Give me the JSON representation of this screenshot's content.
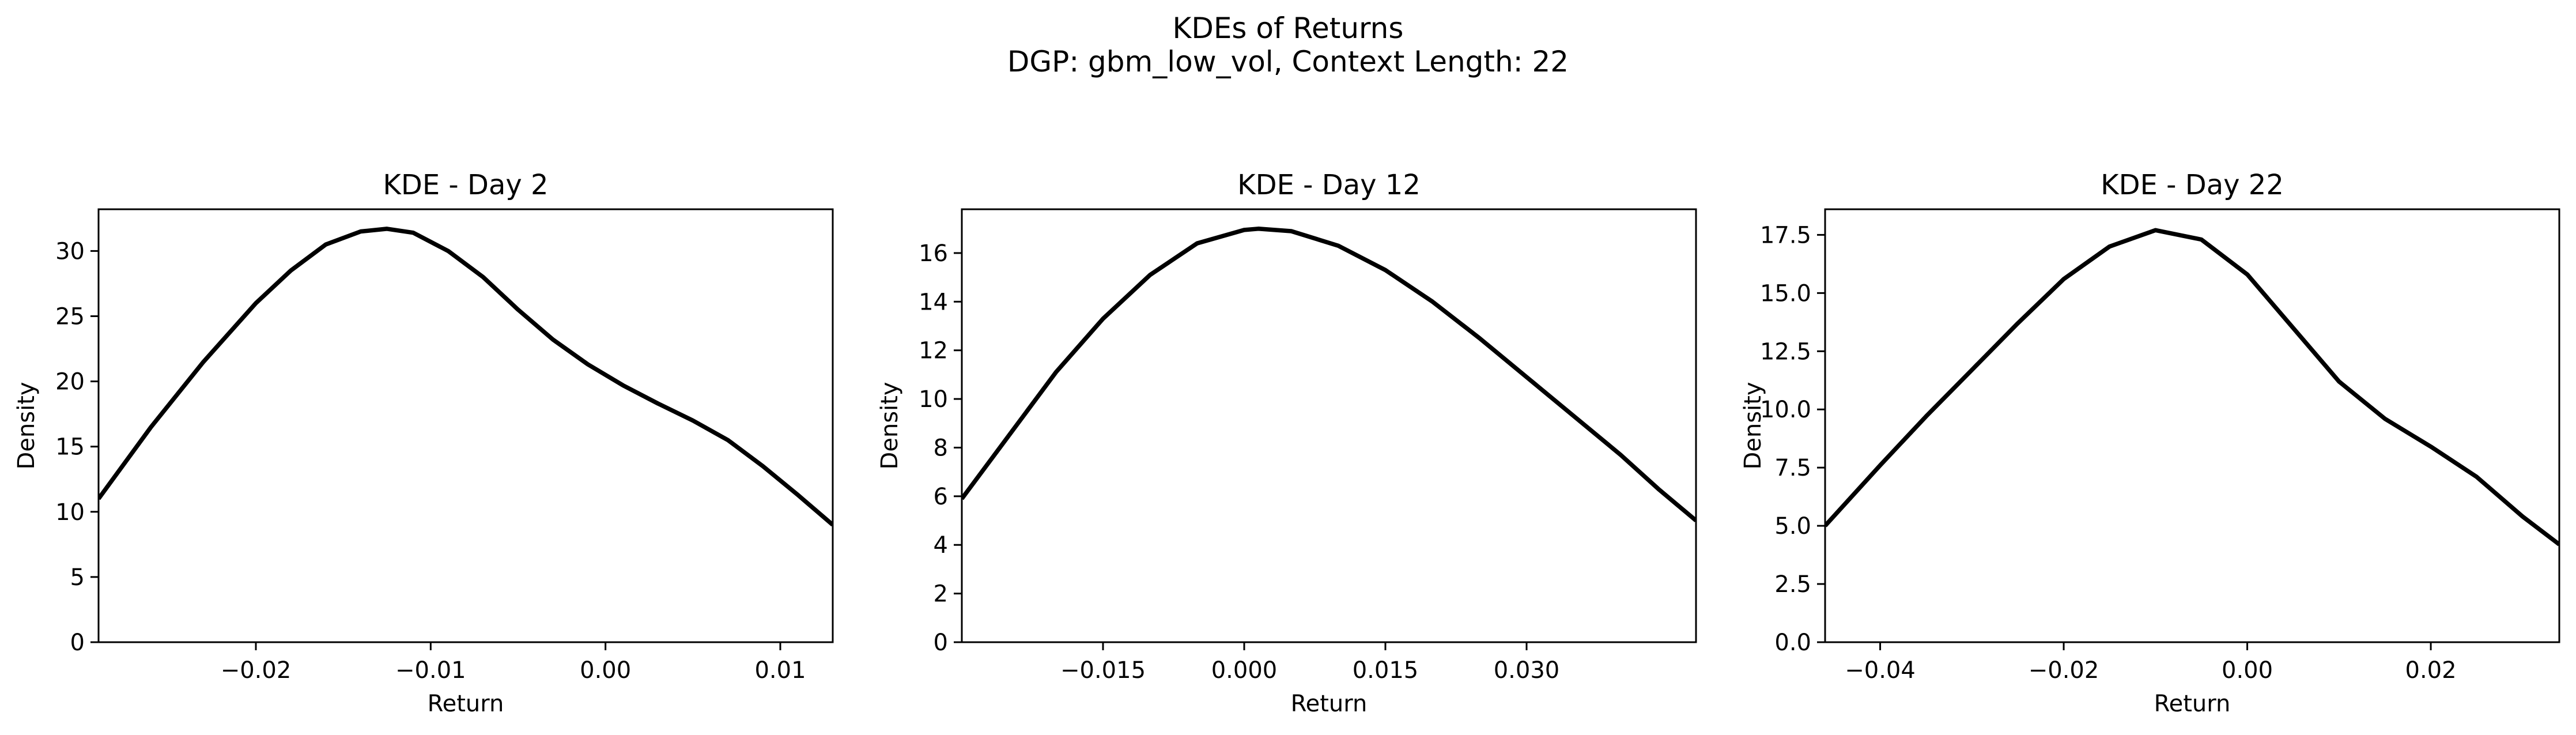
{
  "figure": {
    "suptitle_line1": "KDEs of Returns",
    "suptitle_line2": "DGP: gbm_low_vol, Context Length: 22"
  },
  "chart_data": [
    {
      "type": "line",
      "title": "KDE - Day 2",
      "xlabel": "Return",
      "ylabel": "Density",
      "xlim": [
        -0.029,
        0.013
      ],
      "ylim": [
        0,
        33.2
      ],
      "xticks": [
        -0.02,
        -0.01,
        0.0,
        0.01
      ],
      "xtick_labels": [
        "−0.02",
        "−0.01",
        "0.00",
        "0.01"
      ],
      "yticks": [
        0,
        5,
        10,
        15,
        20,
        25,
        30
      ],
      "ytick_labels": [
        "0",
        "5",
        "10",
        "15",
        "20",
        "25",
        "30"
      ],
      "grid": false,
      "series": [
        {
          "color": "#000000",
          "x": [
            -0.029,
            -0.026,
            -0.023,
            -0.02,
            -0.018,
            -0.016,
            -0.014,
            -0.0125,
            -0.011,
            -0.009,
            -0.007,
            -0.005,
            -0.003,
            -0.001,
            0.001,
            0.003,
            0.005,
            0.007,
            0.009,
            0.011,
            0.013
          ],
          "y": [
            11.0,
            16.5,
            21.5,
            26.0,
            28.5,
            30.5,
            31.5,
            31.7,
            31.4,
            30.0,
            28.0,
            25.5,
            23.2,
            21.3,
            19.7,
            18.3,
            17.0,
            15.5,
            13.5,
            11.3,
            9.0
          ]
        }
      ]
    },
    {
      "type": "line",
      "title": "KDE - Day 12",
      "xlabel": "Return",
      "ylabel": "Density",
      "xlim": [
        -0.03,
        0.048
      ],
      "ylim": [
        0,
        17.8
      ],
      "xticks": [
        -0.015,
        0.0,
        0.015,
        0.03
      ],
      "xtick_labels": [
        "−0.015",
        "0.000",
        "0.015",
        "0.030"
      ],
      "yticks": [
        0,
        2,
        4,
        6,
        8,
        10,
        12,
        14,
        16
      ],
      "ytick_labels": [
        "0",
        "2",
        "4",
        "6",
        "8",
        "10",
        "12",
        "14",
        "16"
      ],
      "grid": false,
      "series": [
        {
          "color": "#000000",
          "x": [
            -0.03,
            -0.025,
            -0.02,
            -0.015,
            -0.01,
            -0.005,
            0.0,
            0.0015,
            0.005,
            0.01,
            0.015,
            0.02,
            0.025,
            0.03,
            0.035,
            0.04,
            0.044,
            0.048
          ],
          "y": [
            5.9,
            8.5,
            11.1,
            13.3,
            15.1,
            16.4,
            16.95,
            17.0,
            16.9,
            16.3,
            15.3,
            14.0,
            12.5,
            10.9,
            9.3,
            7.7,
            6.3,
            5.0
          ]
        }
      ]
    },
    {
      "type": "line",
      "title": "KDE - Day 22",
      "xlabel": "Return",
      "ylabel": "Density",
      "xlim": [
        -0.046,
        0.034
      ],
      "ylim": [
        0,
        18.6
      ],
      "xticks": [
        -0.04,
        -0.02,
        0.0,
        0.02
      ],
      "xtick_labels": [
        "−0.04",
        "−0.02",
        "0.00",
        "0.02"
      ],
      "yticks": [
        0,
        2.5,
        5,
        7.5,
        10,
        12.5,
        15,
        17.5
      ],
      "ytick_labels": [
        "0.0",
        "2.5",
        "5.0",
        "7.5",
        "10.0",
        "12.5",
        "15.0",
        "17.5"
      ],
      "grid": false,
      "series": [
        {
          "color": "#000000",
          "x": [
            -0.046,
            -0.04,
            -0.035,
            -0.03,
            -0.025,
            -0.02,
            -0.015,
            -0.01,
            -0.005,
            0.0,
            0.005,
            0.01,
            0.015,
            0.02,
            0.025,
            0.03,
            0.034
          ],
          "y": [
            5.0,
            7.6,
            9.7,
            11.7,
            13.7,
            15.6,
            17.0,
            17.7,
            17.3,
            15.8,
            13.5,
            11.2,
            9.6,
            8.4,
            7.1,
            5.4,
            4.2
          ]
        }
      ]
    }
  ]
}
